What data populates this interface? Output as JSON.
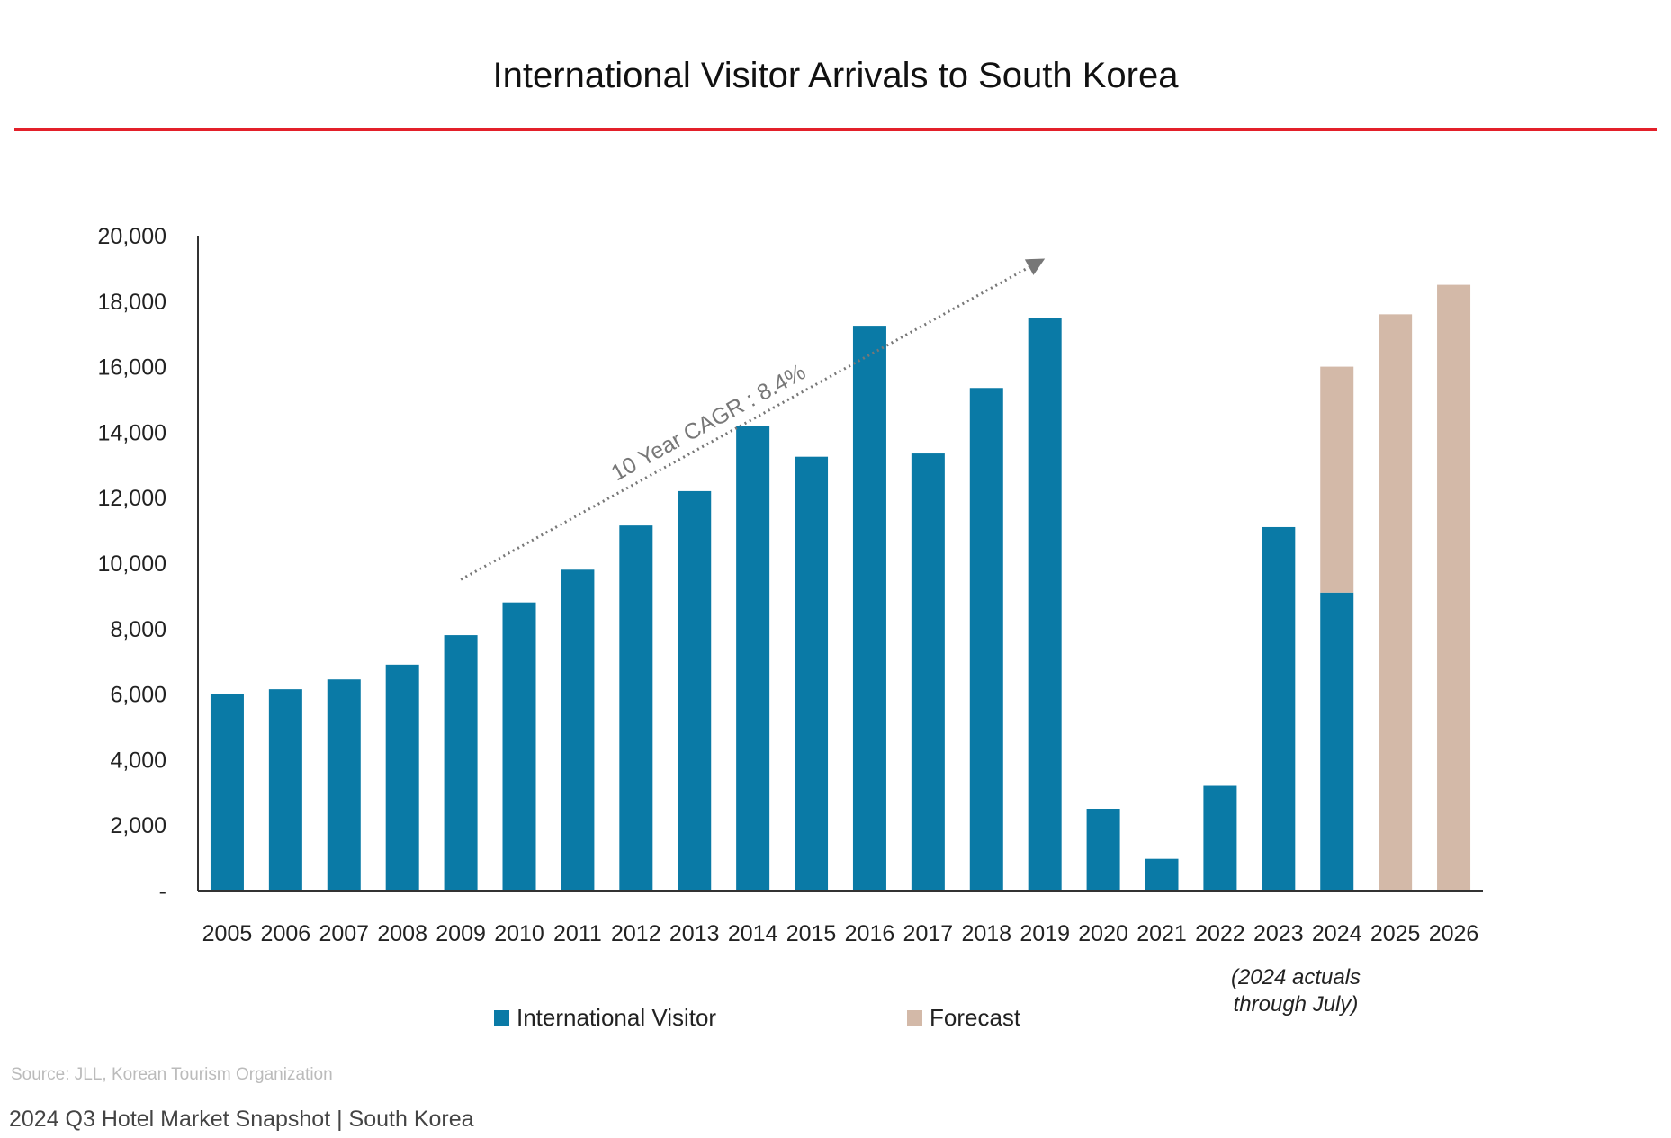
{
  "footer": {
    "source": "Source: JLL, Korean Tourism Organization",
    "report": "2024 Q3 Hotel Market Snapshot | South Korea"
  },
  "colors": {
    "visitor": "#0a7aa6",
    "forecast": "#d3b9a8",
    "title_rule": "#e3202a",
    "trend": "#777777"
  },
  "chart_data": {
    "type": "bar",
    "title": "International Visitor Arrivals to South Korea",
    "xlabel": "",
    "ylabel": "",
    "ylim": [
      0,
      20000
    ],
    "yticks": [
      "-",
      "2,000",
      "4,000",
      "6,000",
      "8,000",
      "10,000",
      "12,000",
      "14,000",
      "16,000",
      "18,000",
      "20,000"
    ],
    "categories": [
      "2005",
      "2006",
      "2007",
      "2008",
      "2009",
      "2010",
      "2011",
      "2012",
      "2013",
      "2014",
      "2015",
      "2016",
      "2017",
      "2018",
      "2019",
      "2020",
      "2021",
      "2022",
      "2023",
      "2024",
      "2025",
      "2026"
    ],
    "stacked": true,
    "series": [
      {
        "name": "International Visitor",
        "values": [
          6000,
          6150,
          6450,
          6900,
          7800,
          8800,
          9800,
          11150,
          12200,
          14200,
          13250,
          17250,
          13350,
          15350,
          17500,
          2500,
          970,
          3200,
          11100,
          9100,
          0,
          0
        ]
      },
      {
        "name": "Forecast",
        "values": [
          0,
          0,
          0,
          0,
          0,
          0,
          0,
          0,
          0,
          0,
          0,
          0,
          0,
          0,
          0,
          0,
          0,
          0,
          0,
          6900,
          17600,
          18500
        ]
      }
    ],
    "annotations": [
      {
        "text": "10 Year CAGR : 8.4%",
        "from_x": "2009",
        "from_y": 9500,
        "to_x": "2019",
        "to_y": 19300
      },
      {
        "text": "(2024 actuals through July)",
        "target": "2024"
      }
    ],
    "legend": "bottom",
    "grid": false
  }
}
